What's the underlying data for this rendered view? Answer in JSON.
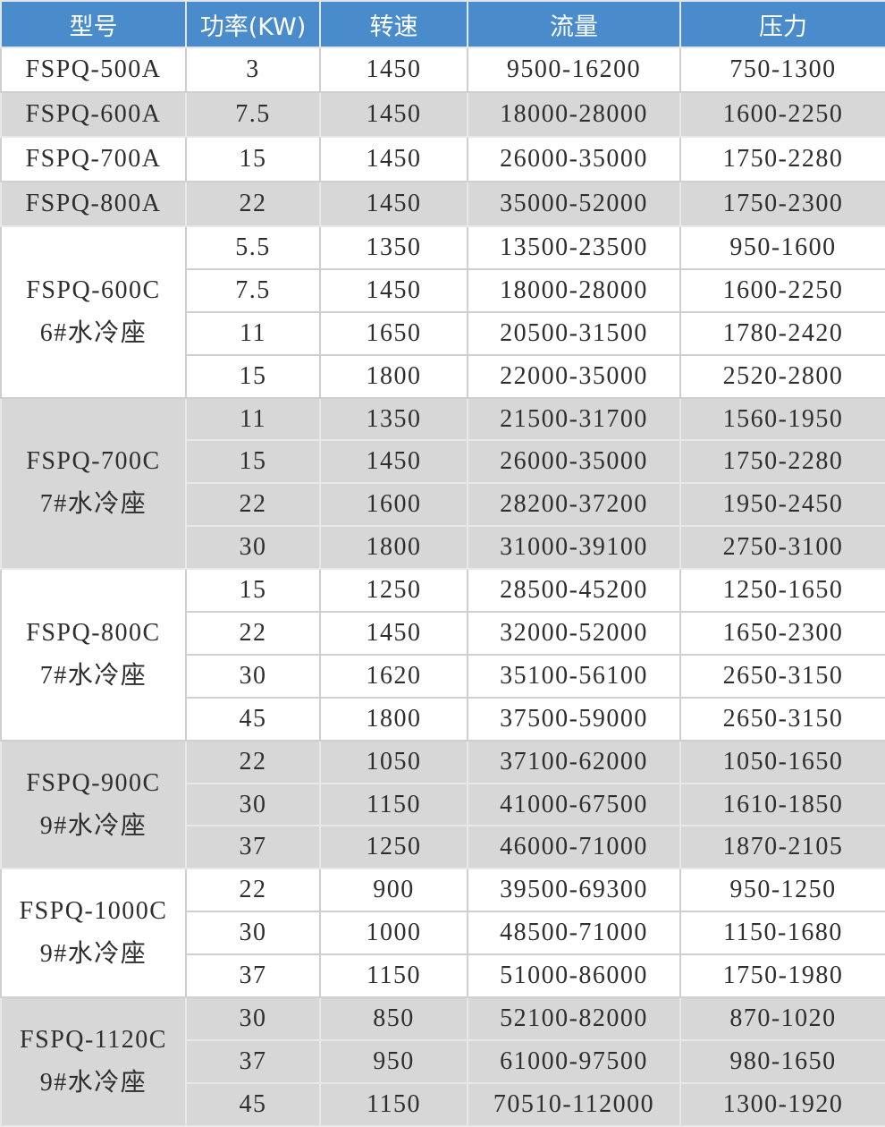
{
  "headers": [
    "型号",
    "功率(KW)",
    "转速",
    "流量",
    "压力"
  ],
  "colors": {
    "header_bg": "#4a8bcb",
    "header_text": "#ffffff",
    "row_gray": "#d7d7d8",
    "row_white": "#ffffff"
  },
  "groups": [
    {
      "model": "FSPQ-500A",
      "base": "",
      "shade": "white",
      "rows": [
        [
          "3",
          "1450",
          "9500-16200",
          "750-1300"
        ]
      ]
    },
    {
      "model": "FSPQ-600A",
      "base": "",
      "shade": "gray",
      "rows": [
        [
          "7.5",
          "1450",
          "18000-28000",
          "1600-2250"
        ]
      ]
    },
    {
      "model": "FSPQ-700A",
      "base": "",
      "shade": "white",
      "rows": [
        [
          "15",
          "1450",
          "26000-35000",
          "1750-2280"
        ]
      ]
    },
    {
      "model": "FSPQ-800A",
      "base": "",
      "shade": "gray",
      "rows": [
        [
          "22",
          "1450",
          "35000-52000",
          "1750-2300"
        ]
      ]
    },
    {
      "model": "FSPQ-600C",
      "base": "6#水冷座",
      "shade": "white",
      "rows": [
        [
          "5.5",
          "1350",
          "13500-23500",
          "950-1600"
        ],
        [
          "7.5",
          "1450",
          "18000-28000",
          "1600-2250"
        ],
        [
          "11",
          "1650",
          "20500-31500",
          "1780-2420"
        ],
        [
          "15",
          "1800",
          "22000-35000",
          "2520-2800"
        ]
      ]
    },
    {
      "model": "FSPQ-700C",
      "base": "7#水冷座",
      "shade": "gray",
      "rows": [
        [
          "11",
          "1350",
          "21500-31700",
          "1560-1950"
        ],
        [
          "15",
          "1450",
          "26000-35000",
          "1750-2280"
        ],
        [
          "22",
          "1600",
          "28200-37200",
          "1950-2450"
        ],
        [
          "30",
          "1800",
          "31000-39100",
          "2750-3100"
        ]
      ]
    },
    {
      "model": "FSPQ-800C",
      "base": "7#水冷座",
      "shade": "white",
      "rows": [
        [
          "15",
          "1250",
          "28500-45200",
          "1250-1650"
        ],
        [
          "22",
          "1450",
          "32000-52000",
          "1650-2300"
        ],
        [
          "30",
          "1620",
          "35100-56100",
          "2650-3150"
        ],
        [
          "45",
          "1800",
          "37500-59000",
          "2650-3150"
        ]
      ]
    },
    {
      "model": "FSPQ-900C",
      "base": "9#水冷座",
      "shade": "gray",
      "rows": [
        [
          "22",
          "1050",
          "37100-62000",
          "1050-1650"
        ],
        [
          "30",
          "1150",
          "41000-67500",
          "1610-1850"
        ],
        [
          "37",
          "1250",
          "46000-71000",
          "1870-2105"
        ]
      ]
    },
    {
      "model": "FSPQ-1000C",
      "base": "9#水冷座",
      "shade": "white",
      "rows": [
        [
          "22",
          "900",
          "39500-69300",
          "950-1250"
        ],
        [
          "30",
          "1000",
          "48500-71000",
          "1150-1680"
        ],
        [
          "37",
          "1150",
          "51000-86000",
          "1750-1980"
        ]
      ]
    },
    {
      "model": "FSPQ-1120C",
      "base": "9#水冷座",
      "shade": "gray",
      "rows": [
        [
          "30",
          "850",
          "52100-82000",
          "870-1020"
        ],
        [
          "37",
          "950",
          "61000-97500",
          "980-1650"
        ],
        [
          "45",
          "1150",
          "70510-112000",
          "1300-1920"
        ]
      ]
    }
  ]
}
